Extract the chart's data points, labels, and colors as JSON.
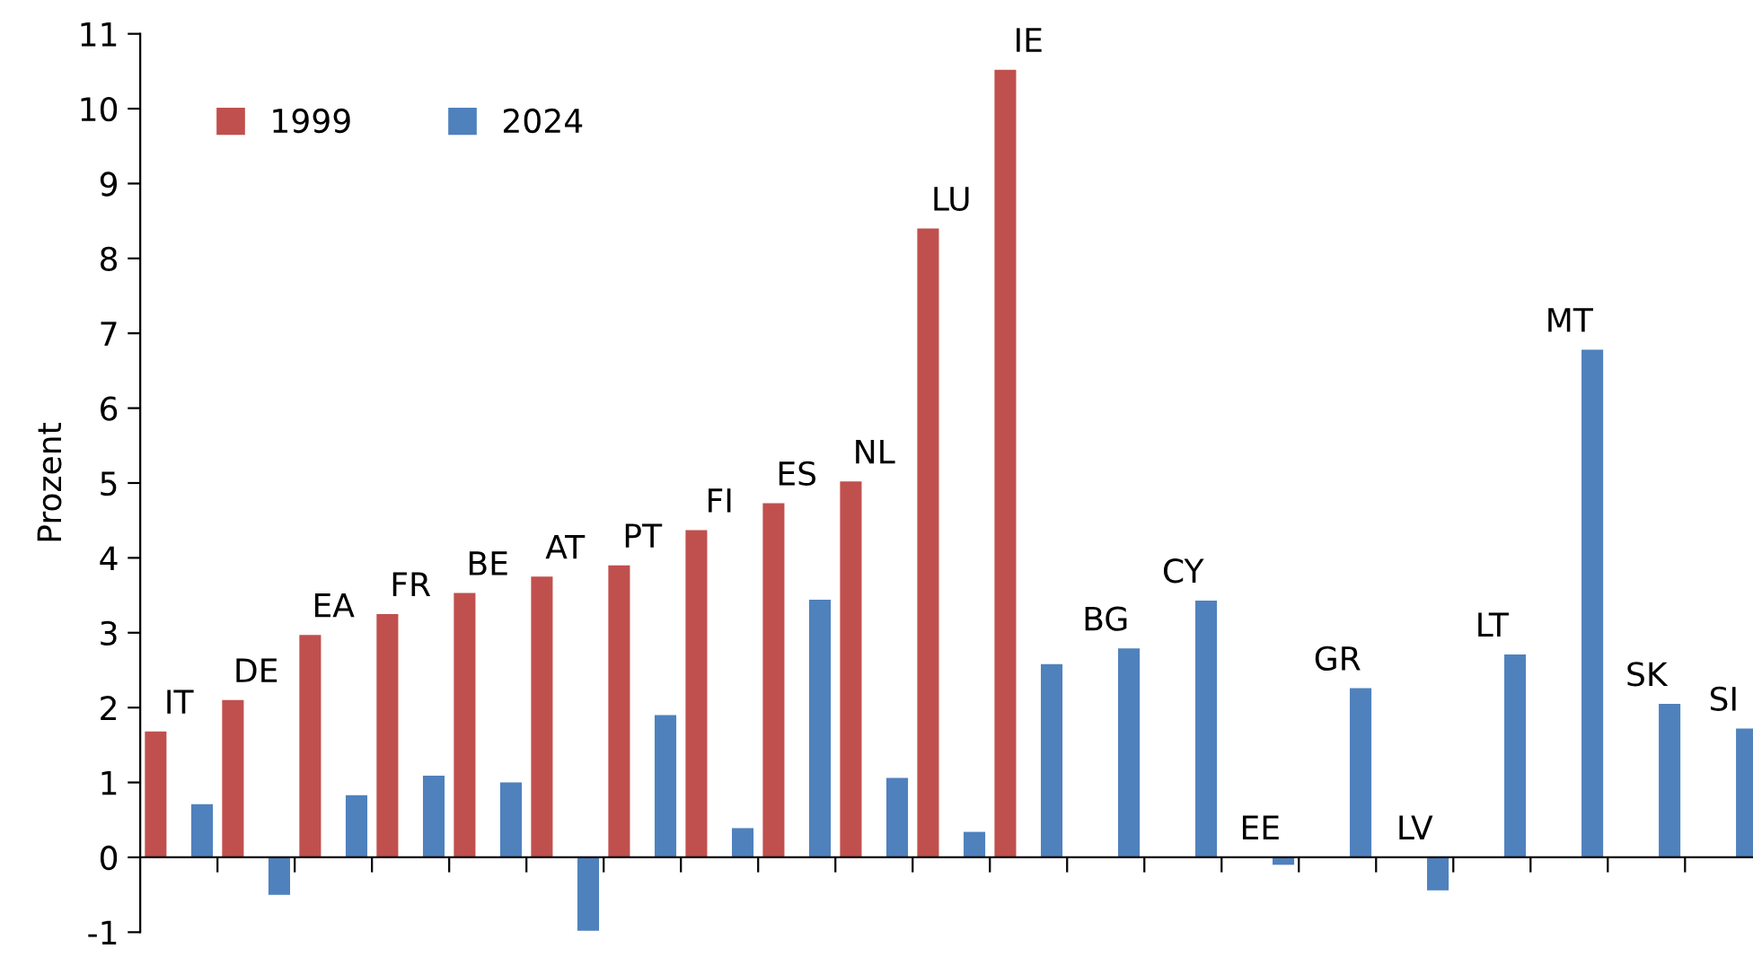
{
  "chart_data": {
    "type": "bar",
    "ylabel": "Prozent",
    "categories": [
      "IT",
      "DE",
      "EA",
      "FR",
      "BE",
      "AT",
      "PT",
      "FI",
      "ES",
      "NL",
      "LU",
      "IE",
      "BG",
      "CY",
      "EE",
      "GR",
      "LV",
      "LT",
      "MT",
      "SK",
      "SI"
    ],
    "series": [
      {
        "name": "1999",
        "color": "#c0504d",
        "values": [
          1.68,
          2.1,
          2.97,
          3.25,
          3.53,
          3.75,
          3.9,
          4.37,
          4.73,
          5.02,
          8.4,
          10.52,
          null,
          null,
          null,
          null,
          null,
          null,
          null,
          null,
          null
        ]
      },
      {
        "name": "2024",
        "color": "#4f81bd",
        "values": [
          0.71,
          -0.5,
          0.83,
          1.09,
          1.0,
          -0.98,
          1.9,
          0.39,
          3.44,
          1.06,
          0.34,
          2.58,
          2.79,
          3.43,
          -0.1,
          2.26,
          -0.44,
          2.71,
          6.78,
          2.05,
          1.72
        ]
      }
    ],
    "ylim": [
      -1,
      11
    ],
    "yticks": [
      -1,
      0,
      1,
      2,
      3,
      4,
      5,
      6,
      7,
      8,
      9,
      10,
      11
    ],
    "grid": false,
    "legend": "top left",
    "tick_labels": "y"
  }
}
